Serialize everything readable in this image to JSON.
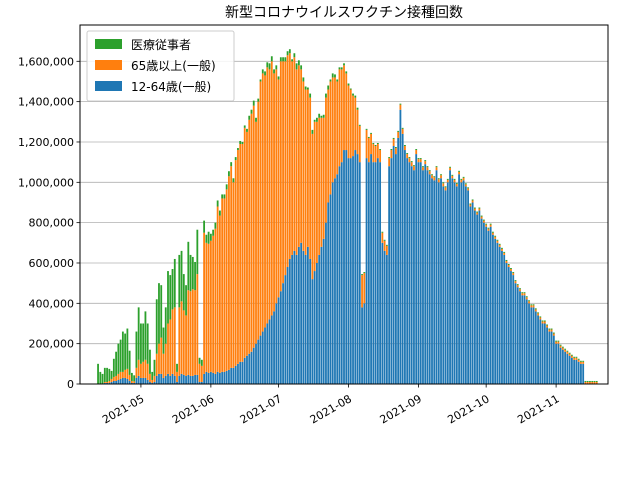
{
  "chart_data": {
    "type": "bar",
    "stacked": true,
    "title": "新型コロナウイルスワクチン接種回数",
    "xlabel": "",
    "ylabel": "",
    "ylim": [
      0,
      1780000
    ],
    "y_ticks": [
      0,
      200000,
      400000,
      600000,
      800000,
      1000000,
      1200000,
      1400000,
      1600000
    ],
    "y_tick_labels": [
      "0",
      "200,000",
      "400,000",
      "600,000",
      "800,000",
      "1,000,000",
      "1,200,000",
      "1,400,000",
      "1,600,000"
    ],
    "x_ticks": [
      "2021-05-01",
      "2021-06-01",
      "2021-07-01",
      "2021-08-01",
      "2021-09-01",
      "2021-10-01",
      "2021-11-01"
    ],
    "x_tick_labels": [
      "2021-05",
      "2021-06",
      "2021-07",
      "2021-08",
      "2021-09",
      "2021-10",
      "2021-11"
    ],
    "x_range": [
      "2021-04-04",
      "2021-11-24"
    ],
    "grid": "y",
    "legend_position": "top-left",
    "colors": {
      "medical": "#2ca02c",
      "elderly": "#ff7f0e",
      "general": "#1f77b4"
    },
    "start_date": "2021-04-12",
    "series": [
      {
        "name": "医療従事者",
        "key": "medical",
        "values": [
          100000,
          60000,
          50000,
          70000,
          70000,
          60000,
          40000,
          90000,
          120000,
          150000,
          160000,
          200000,
          180000,
          200000,
          120000,
          40000,
          30000,
          180000,
          260000,
          200000,
          190000,
          240000,
          200000,
          120000,
          40000,
          80000,
          270000,
          300000,
          260000,
          130000,
          180000,
          260000,
          220000,
          200000,
          240000,
          40000,
          260000,
          250000,
          180000,
          150000,
          240000,
          180000,
          160000,
          140000,
          220000,
          30000,
          30000,
          60000,
          40000,
          60000,
          35000,
          30000,
          30000,
          30000,
          25000,
          20000,
          20000,
          25000,
          25000,
          20000,
          20000,
          15000,
          10000,
          15000,
          10000,
          12000,
          15000,
          20000,
          20000,
          25000,
          20000,
          15000,
          10000,
          20000,
          20000,
          25000,
          30000,
          25000,
          20000,
          20000,
          15000,
          20000,
          20000,
          20000,
          20000,
          20000,
          10000,
          20000,
          30000,
          25000,
          20000,
          20000,
          15000,
          10000,
          20000,
          20000,
          10000,
          20000,
          20000,
          10000,
          15000,
          20000,
          20000,
          10000,
          20000,
          15000,
          10000,
          10000,
          10000,
          10000,
          10000,
          10000,
          5000,
          10000,
          10000,
          10000,
          5000,
          5000,
          5000,
          5000,
          5000,
          5000,
          5000,
          5000,
          5000,
          5000,
          5000,
          5000,
          5000,
          5000,
          5000,
          5000,
          5000,
          5000,
          5000,
          5000,
          5000,
          5000,
          5000,
          5000,
          5000,
          5000,
          5000,
          5000,
          5000,
          5000,
          5000,
          5000,
          5000,
          5000,
          5000,
          5000,
          5000,
          5000,
          5000,
          5000,
          5000,
          5000,
          5000,
          5000,
          5000,
          5000,
          5000,
          5000,
          5000,
          5000,
          5000,
          5000,
          5000,
          5000,
          5000,
          5000,
          5000,
          5000,
          5000,
          5000,
          5000,
          5000,
          5000,
          5000,
          5000,
          5000,
          5000,
          5000,
          5000,
          5000,
          5000,
          5000,
          5000,
          5000,
          5000,
          5000,
          5000,
          5000,
          5000,
          5000,
          5000,
          5000,
          5000,
          5000,
          5000,
          5000,
          5000,
          5000,
          5000,
          5000,
          5000,
          5000,
          5000,
          5000,
          5000,
          5000,
          5000,
          5000,
          5000,
          5000,
          5000,
          5000,
          5000,
          5000,
          5000,
          5000
        ]
      },
      {
        "name": "65歳以上(一般)",
        "key": "elderly",
        "values": [
          0,
          0,
          0,
          5000,
          5000,
          10000,
          15000,
          20000,
          25000,
          30000,
          35000,
          30000,
          40000,
          50000,
          30000,
          10000,
          8000,
          50000,
          80000,
          70000,
          80000,
          90000,
          80000,
          40000,
          15000,
          30000,
          110000,
          150000,
          180000,
          120000,
          160000,
          250000,
          280000,
          320000,
          340000,
          50000,
          340000,
          360000,
          320000,
          300000,
          420000,
          420000,
          430000,
          420000,
          500000,
          90000,
          80000,
          700000,
          640000,
          640000,
          650000,
          680000,
          720000,
          820000,
          780000,
          860000,
          860000,
          900000,
          960000,
          1000000,
          920000,
          1020000,
          1060000,
          1080000,
          1080000,
          1140000,
          1110000,
          1160000,
          1180000,
          1200000,
          1100000,
          1180000,
          1260000,
          1280000,
          1250000,
          1270000,
          1240000,
          1260000,
          1180000,
          1160000,
          1080000,
          1140000,
          1100000,
          1060000,
          1050000,
          1020000,
          960000,
          960000,
          920000,
          900000,
          860000,
          840000,
          820000,
          780000,
          800000,
          720000,
          740000,
          700000,
          680000,
          640000,
          600000,
          620000,
          560000,
          560000,
          520000,
          500000,
          460000,
          480000,
          460000,
          420000,
          380000,
          360000,
          340000,
          300000,
          260000,
          220000,
          180000,
          160000,
          150000,
          140000,
          120000,
          100000,
          90000,
          80000,
          70000,
          60000,
          50000,
          50000,
          45000,
          40000,
          40000,
          35000,
          30000,
          30000,
          25000,
          25000,
          20000,
          20000,
          20000,
          20000,
          20000,
          20000,
          15000,
          15000,
          15000,
          15000,
          15000,
          15000,
          15000,
          15000,
          15000,
          15000,
          15000,
          15000,
          15000,
          12000,
          12000,
          12000,
          12000,
          12000,
          12000,
          12000,
          12000,
          10000,
          10000,
          10000,
          10000,
          10000,
          10000,
          10000,
          10000,
          10000,
          10000,
          10000,
          10000,
          10000,
          10000,
          10000,
          10000,
          10000,
          10000,
          10000,
          10000,
          10000,
          10000,
          10000,
          10000,
          10000,
          10000,
          10000,
          10000,
          10000,
          10000,
          10000,
          10000,
          10000,
          10000,
          10000,
          10000,
          10000,
          10000,
          10000,
          10000,
          10000,
          10000,
          10000,
          10000,
          10000,
          10000,
          10000,
          10000,
          10000,
          10000,
          10000,
          10000,
          10000,
          10000,
          10000,
          10000,
          10000,
          10000,
          10000
        ]
      },
      {
        "name": "12-64歳(一般)",
        "key": "general",
        "values": [
          0,
          0,
          0,
          5000,
          5000,
          5000,
          10000,
          15000,
          15000,
          20000,
          25000,
          30000,
          30000,
          25000,
          15000,
          5000,
          5000,
          30000,
          40000,
          30000,
          30000,
          30000,
          20000,
          10000,
          5000,
          10000,
          40000,
          50000,
          50000,
          30000,
          40000,
          50000,
          40000,
          50000,
          40000,
          10000,
          40000,
          50000,
          45000,
          40000,
          45000,
          40000,
          40000,
          45000,
          45000,
          10000,
          10000,
          50000,
          60000,
          55000,
          60000,
          55000,
          50000,
          60000,
          55000,
          60000,
          60000,
          65000,
          70000,
          80000,
          80000,
          90000,
          100000,
          110000,
          110000,
          130000,
          140000,
          150000,
          160000,
          180000,
          200000,
          220000,
          240000,
          260000,
          280000,
          300000,
          320000,
          340000,
          360000,
          400000,
          430000,
          460000,
          500000,
          540000,
          580000,
          620000,
          640000,
          660000,
          640000,
          680000,
          700000,
          660000,
          640000,
          680000,
          620000,
          520000,
          560000,
          600000,
          640000,
          680000,
          720000,
          800000,
          900000,
          940000,
          1000000,
          1020000,
          1040000,
          1080000,
          1100000,
          1160000,
          1160000,
          1120000,
          1120000,
          1130000,
          1160000,
          1140000,
          1100000,
          380000,
          400000,
          1120000,
          1100000,
          1140000,
          1100000,
          1100000,
          1120000,
          1100000,
          700000,
          660000,
          640000,
          1080000,
          1120000,
          1180000,
          1140000,
          1220000,
          1360000,
          1240000,
          1160000,
          1120000,
          1100000,
          1080000,
          1060000,
          1140000,
          1100000,
          1100000,
          1060000,
          1090000,
          1060000,
          1040000,
          1020000,
          1010000,
          1060000,
          1000000,
          1020000,
          980000,
          960000,
          1000000,
          1060000,
          1020000,
          1000000,
          980000,
          1040000,
          1000000,
          1010000,
          980000,
          960000,
          880000,
          900000,
          860000,
          840000,
          860000,
          820000,
          800000,
          780000,
          760000,
          780000,
          740000,
          720000,
          700000,
          680000,
          660000,
          640000,
          600000,
          580000,
          560000,
          540000,
          500000,
          480000,
          460000,
          440000,
          440000,
          420000,
          400000,
          380000,
          380000,
          360000,
          340000,
          320000,
          300000,
          300000,
          280000,
          260000,
          260000,
          240000,
          200000,
          200000,
          180000,
          170000,
          160000,
          150000,
          140000,
          130000,
          120000,
          120000,
          110000,
          100000,
          100000
        ]
      }
    ]
  }
}
